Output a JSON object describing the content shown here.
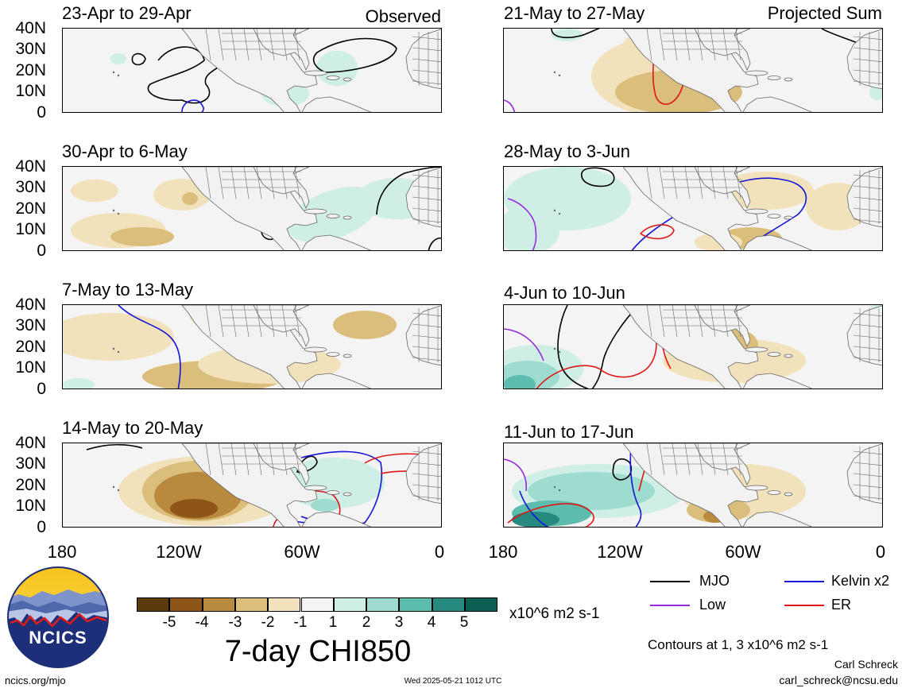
{
  "map": {
    "title": "7-day CHI850",
    "units": "x10^6 m2 s-1",
    "contour_note": "Contours at 1, 3 x10^6 m2 s-1",
    "left_header_label": "Observed",
    "right_header_label": "Projected Sum",
    "lat_labels": [
      "40N",
      "30N",
      "20N",
      "10N",
      "0"
    ],
    "lon_labels": [
      "180",
      "120W",
      "60W",
      "0"
    ],
    "colors": {
      "neg5": "#5b3a0c",
      "neg4": "#8d5618",
      "neg3": "#b98a3e",
      "neg2": "#dcbe7c",
      "neg1": "#f1e2bb",
      "neutral": "#f4f4f4",
      "pos1": "#cfeee6",
      "pos2": "#9edcd0",
      "pos3": "#5cbcae",
      "pos4": "#268a80",
      "pos5": "#0c5d52",
      "land": "#666666",
      "mjo": "#000000",
      "kelvin": "#1515d8",
      "er": "#e01515",
      "low": "#9a28e0"
    }
  },
  "panels": {
    "left": [
      {
        "title": "23-Apr to 29-Apr"
      },
      {
        "title": "30-Apr to 6-May"
      },
      {
        "title": "7-May to 13-May"
      },
      {
        "title": "14-May to 20-May"
      }
    ],
    "right": [
      {
        "title": "21-May to 27-May"
      },
      {
        "title": "28-May to 3-Jun"
      },
      {
        "title": "4-Jun to 10-Jun"
      },
      {
        "title": "11-Jun to 17-Jun"
      }
    ]
  },
  "colorbar": {
    "labels": [
      "-5",
      "-4",
      "-3",
      "-2",
      "-1",
      "1",
      "2",
      "3",
      "4",
      "5"
    ],
    "colors": [
      "#5b3a0c",
      "#8d5618",
      "#b98a3e",
      "#dcbe7c",
      "#f1e2bb",
      "#f4f4f4",
      "#cfeee6",
      "#9edcd0",
      "#5cbcae",
      "#268a80",
      "#0c5d52"
    ]
  },
  "legend": {
    "mjo": "MJO",
    "kelvin": "Kelvin x2",
    "low": "Low",
    "er": "ER"
  },
  "footer": {
    "logo_text": "NCICS",
    "url": "ncics.org/mjo",
    "timestamp": "Wed 2025-05-21 1012 UTC",
    "author": "Carl Schreck",
    "email": "carl_schreck@ncsu.edu"
  }
}
